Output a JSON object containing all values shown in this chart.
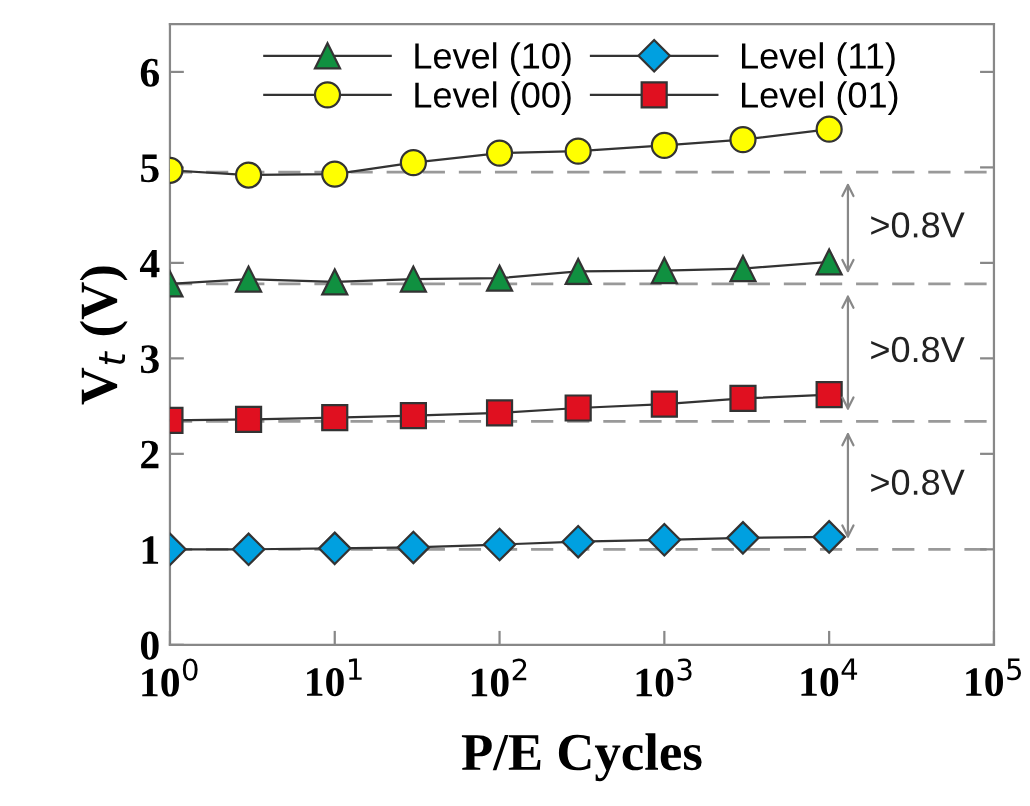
{
  "chart_data": {
    "type": "line",
    "xlabel": "P/E Cycles",
    "ylabel": "V$_{t}$ (V)",
    "log": "x",
    "xlim": [
      1,
      100000
    ],
    "ylim": [
      0,
      6.5
    ],
    "xticks": [
      {
        "value": 1,
        "label": "10$^{0}$"
      },
      {
        "value": 10,
        "label": "10$^{1}$"
      },
      {
        "value": 100,
        "label": "10$^{2}$"
      },
      {
        "value": 1000,
        "label": "10$^{3}$"
      },
      {
        "value": 10000,
        "label": "10$^{4}$"
      },
      {
        "value": 100000,
        "label": "10$^{5}$"
      }
    ],
    "yticks": [
      0,
      1,
      2,
      3,
      4,
      5,
      6
    ],
    "x": [
      1,
      3,
      10,
      30,
      100,
      300,
      1000,
      3000,
      10000
    ],
    "series": [
      {
        "name": "Level (10)",
        "color": "#109040",
        "marker": "triangle",
        "values": [
          3.78,
          3.83,
          3.8,
          3.83,
          3.84,
          3.91,
          3.92,
          3.94,
          4.01
        ]
      },
      {
        "name": "Level (00)",
        "color": "#ffff00",
        "marker": "circle",
        "values": [
          4.97,
          4.92,
          4.93,
          5.05,
          5.15,
          5.17,
          5.23,
          5.29,
          5.4
        ]
      },
      {
        "name": "Level (11)",
        "color": "#00a0e0",
        "marker": "diamond",
        "values": [
          1.0,
          1.0,
          1.01,
          1.02,
          1.05,
          1.08,
          1.1,
          1.12,
          1.13
        ]
      },
      {
        "name": "Level (01)",
        "color": "#e01020",
        "marker": "square",
        "values": [
          2.35,
          2.36,
          2.38,
          2.4,
          2.43,
          2.48,
          2.52,
          2.58,
          2.62
        ]
      }
    ],
    "ref_lines": [
      {
        "axis": "y",
        "value": 4.95,
        "color": "#999999",
        "line_style": "dashed"
      },
      {
        "axis": "y",
        "value": 3.78,
        "color": "#999999",
        "line_style": "dashed"
      },
      {
        "axis": "y",
        "value": 2.34,
        "color": "#999999",
        "line_style": "dashed"
      },
      {
        "axis": "y",
        "value": 1.0,
        "color": "#999999",
        "line_style": "dashed"
      }
    ],
    "annotations": [
      ">0.8V",
      ">0.8V",
      ">0.8V"
    ],
    "legend": "top",
    "grid": false,
    "line_style": "solid"
  }
}
